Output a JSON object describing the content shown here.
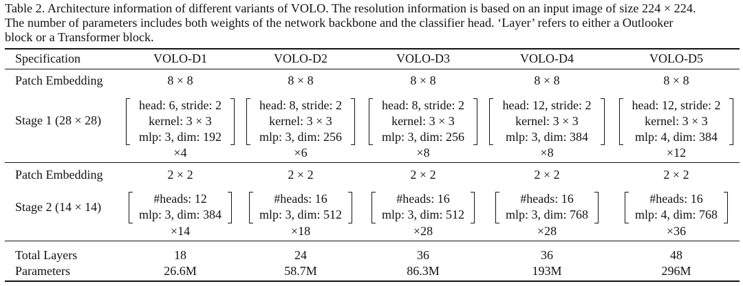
{
  "caption": {
    "lines": [
      "Table 2. Architecture information of different variants of VOLO. The resolution information is based on an input image of size 224 × 224.",
      "The number of parameters includes both weights of the network backbone and the classifier head.  ‘Layer’ refers to either a Outlooker",
      "block or a Transformer block."
    ]
  },
  "table": {
    "header": [
      "Specification",
      "VOLO-D1",
      "VOLO-D2",
      "VOLO-D3",
      "VOLO-D4",
      "VOLO-D5"
    ],
    "patch_embedding_1": {
      "label": "Patch Embedding",
      "values": [
        "8 × 8",
        "8 × 8",
        "8 × 8",
        "8 × 8",
        "8 × 8"
      ]
    },
    "stage1": {
      "label": "Stage 1 (28 × 28)",
      "cols": [
        {
          "l1": "head: 6, stride: 2",
          "l2": "kernel: 3 × 3",
          "l3": "mlp: 3, dim: 192",
          "rep": "×4"
        },
        {
          "l1": "head: 8, stride: 2",
          "l2": "kernel: 3 × 3",
          "l3": "mlp: 3, dim: 256",
          "rep": "×6"
        },
        {
          "l1": "head: 8, stride: 2",
          "l2": "kernel: 3 × 3",
          "l3": "mlp: 3, dim: 256",
          "rep": "×8"
        },
        {
          "l1": "head: 12, stride: 2",
          "l2": "kernel: 3 × 3",
          "l3": "mlp: 3, dim: 384",
          "rep": "×8"
        },
        {
          "l1": "head: 12, stride: 2",
          "l2": "kernel: 3 × 3",
          "l3": "mlp: 4, dim: 384",
          "rep": "×12"
        }
      ]
    },
    "patch_embedding_2": {
      "label": "Patch Embedding",
      "values": [
        "2 × 2",
        "2 × 2",
        "2 × 2",
        "2 × 2",
        "2 × 2"
      ]
    },
    "stage2": {
      "label": "Stage 2 (14 × 14)",
      "cols": [
        {
          "l1": "#heads: 12",
          "l2": "mlp: 3, dim: 384",
          "rep": "×14"
        },
        {
          "l1": "#heads: 16",
          "l2": "mlp: 3, dim: 512",
          "rep": "×18"
        },
        {
          "l1": "#heads: 16",
          "l2": "mlp: 3, dim: 512",
          "rep": "×28"
        },
        {
          "l1": "#heads: 16",
          "l2": "mlp: 3, dim: 768",
          "rep": "×28"
        },
        {
          "l1": "#heads: 16",
          "l2": "mlp: 4, dim: 768",
          "rep": "×36"
        }
      ]
    },
    "total_layers": {
      "label": "Total Layers",
      "values": [
        "18",
        "24",
        "36",
        "36",
        "48"
      ]
    },
    "parameters": {
      "label": "Parameters",
      "values": [
        "26.6M",
        "58.7M",
        "86.3M",
        "193M",
        "296M"
      ]
    }
  }
}
